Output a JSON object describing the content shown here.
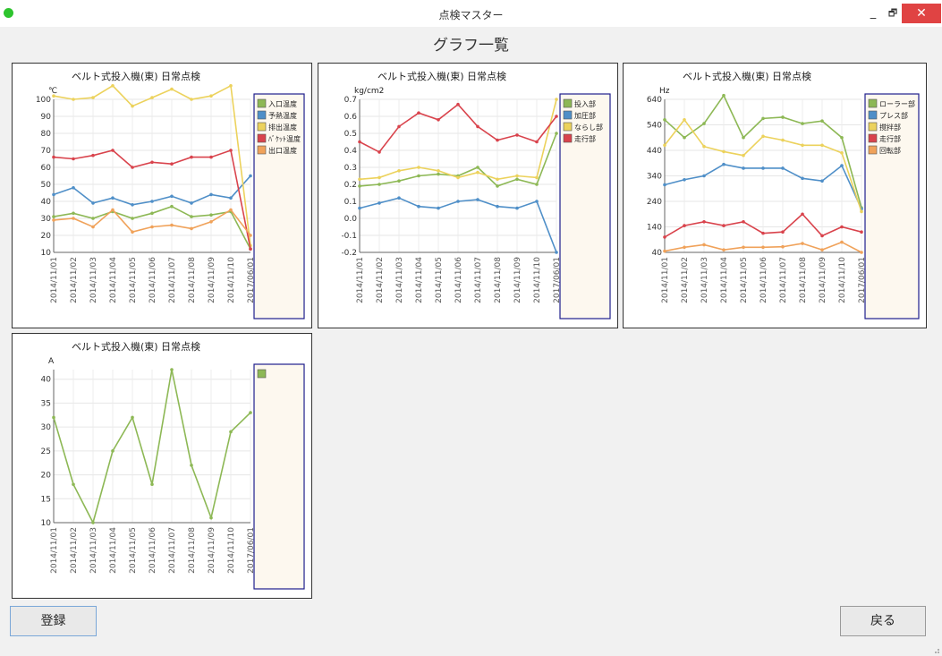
{
  "window": {
    "title": "点検マスター",
    "minimize": "_",
    "maximize": "🗗",
    "close": "✕"
  },
  "page_title": "グラフ一覧",
  "buttons": {
    "register": "登録",
    "back": "戻る"
  },
  "colors": {
    "green": "#8db855",
    "blue": "#4f8fc8",
    "yellow": "#ecd25c",
    "red": "#d9434c",
    "orange": "#f0a25a",
    "legend_bg": "#fdf8ef",
    "legend_border": "#1e1e8c",
    "close_button": "#e04343",
    "status_dot": "#2ec42e"
  },
  "chart_data": [
    {
      "type": "line",
      "title": "ベルト式投入機(東) 日常点検",
      "ylabel": "℃",
      "xlabel": "",
      "ylim": [
        10,
        100
      ],
      "yticks": [
        10,
        20,
        30,
        40,
        50,
        60,
        70,
        80,
        90,
        100
      ],
      "categories": [
        "2014/11/01",
        "2014/11/02",
        "2014/11/03",
        "2014/11/04",
        "2014/11/05",
        "2014/11/06",
        "2014/11/07",
        "2014/11/08",
        "2014/11/09",
        "2014/11/10",
        "2017/06/01"
      ],
      "legend_position": "right",
      "grid": true,
      "series": [
        {
          "name": "入口温度",
          "color": "green",
          "values": [
            31,
            33,
            30,
            34,
            30,
            33,
            37,
            31,
            32,
            34,
            12
          ]
        },
        {
          "name": "予熱温度",
          "color": "blue",
          "values": [
            44,
            48,
            39,
            42,
            38,
            40,
            43,
            39,
            44,
            42,
            55
          ]
        },
        {
          "name": "排出温度",
          "color": "yellow",
          "values": [
            102,
            100,
            101,
            108,
            96,
            101,
            106,
            100,
            102,
            108,
            14
          ]
        },
        {
          "name": "ﾊﾞｹｯﾄ温度",
          "color": "red",
          "values": [
            66,
            65,
            67,
            70,
            60,
            63,
            62,
            66,
            66,
            70,
            12
          ]
        },
        {
          "name": "出口温度",
          "color": "orange",
          "values": [
            29,
            30,
            25,
            35,
            22,
            25,
            26,
            24,
            28,
            35,
            20
          ]
        }
      ]
    },
    {
      "type": "line",
      "title": "ベルト式投入機(東) 日常点検",
      "ylabel": "kg/cm2",
      "xlabel": "",
      "ylim": [
        -0.2,
        0.7
      ],
      "yticks": [
        -0.2,
        -0.1,
        0,
        0.1,
        0.2,
        0.3,
        0.4,
        0.5,
        0.6,
        0.7
      ],
      "ytick_labels": [
        "-0.2",
        "-0.1",
        "0.0",
        "0.1",
        "0.2",
        "0.3",
        "0.4",
        "0.5",
        "0.6",
        "0.7"
      ],
      "categories": [
        "2014/11/01",
        "2014/11/02",
        "2014/11/03",
        "2014/11/04",
        "2014/11/05",
        "2014/11/06",
        "2014/11/07",
        "2014/11/08",
        "2014/11/09",
        "2014/11/10",
        "2017/06/01"
      ],
      "legend_position": "right",
      "grid": true,
      "series": [
        {
          "name": "投入部",
          "color": "green",
          "values": [
            0.19,
            0.2,
            0.22,
            0.25,
            0.26,
            0.25,
            0.3,
            0.19,
            0.23,
            0.2,
            0.5
          ]
        },
        {
          "name": "加圧部",
          "color": "blue",
          "values": [
            0.06,
            0.09,
            0.12,
            0.07,
            0.06,
            0.1,
            0.11,
            0.07,
            0.06,
            0.1,
            -0.2
          ]
        },
        {
          "name": "ならし部",
          "color": "yellow",
          "values": [
            0.23,
            0.24,
            0.28,
            0.3,
            0.28,
            0.24,
            0.27,
            0.23,
            0.25,
            0.24,
            0.7
          ]
        },
        {
          "name": "走行部",
          "color": "red",
          "values": [
            0.45,
            0.39,
            0.54,
            0.62,
            0.58,
            0.67,
            0.54,
            0.46,
            0.49,
            0.45,
            0.6
          ]
        }
      ]
    },
    {
      "type": "line",
      "title": "ベルト式投入機(東) 日常点検",
      "ylabel": "Hz",
      "xlabel": "",
      "ylim": [
        40,
        640
      ],
      "yticks": [
        40,
        140,
        240,
        340,
        440,
        540,
        640
      ],
      "categories": [
        "2014/11/01",
        "2014/11/02",
        "2014/11/03",
        "2014/11/04",
        "2014/11/05",
        "2014/11/06",
        "2014/11/07",
        "2014/11/08",
        "2014/11/09",
        "2014/11/10",
        "2017/06/01"
      ],
      "legend_position": "right",
      "grid": true,
      "series": [
        {
          "name": "ローラー部",
          "color": "green",
          "values": [
            560,
            490,
            545,
            655,
            490,
            565,
            570,
            545,
            555,
            490,
            215
          ]
        },
        {
          "name": "プレス部",
          "color": "blue",
          "values": [
            305,
            325,
            340,
            385,
            370,
            370,
            370,
            330,
            320,
            380,
            210
          ]
        },
        {
          "name": "撹拌部",
          "color": "yellow",
          "values": [
            460,
            560,
            455,
            435,
            420,
            495,
            480,
            460,
            460,
            430,
            200
          ]
        },
        {
          "name": "走行部",
          "color": "red",
          "values": [
            100,
            145,
            160,
            145,
            160,
            115,
            120,
            190,
            105,
            140,
            120
          ]
        },
        {
          "name": "回転部",
          "color": "orange",
          "values": [
            45,
            60,
            70,
            50,
            60,
            60,
            62,
            75,
            50,
            80,
            40
          ]
        }
      ]
    },
    {
      "type": "line",
      "title": "ベルト式投入機(東) 日常点検",
      "ylabel": "A",
      "xlabel": "",
      "ylim": [
        10,
        42
      ],
      "yticks": [
        10,
        15,
        20,
        25,
        30,
        35,
        40
      ],
      "categories": [
        "2014/11/01",
        "2014/11/02",
        "2014/11/03",
        "2014/11/04",
        "2014/11/05",
        "2014/11/06",
        "2014/11/07",
        "2014/11/08",
        "2014/11/09",
        "2014/11/10",
        "2017/06/01"
      ],
      "legend_position": "right",
      "grid": true,
      "series": [
        {
          "color": "green",
          "values": [
            32,
            18,
            10,
            25,
            32,
            18,
            42,
            22,
            11,
            29,
            33
          ]
        }
      ]
    }
  ]
}
